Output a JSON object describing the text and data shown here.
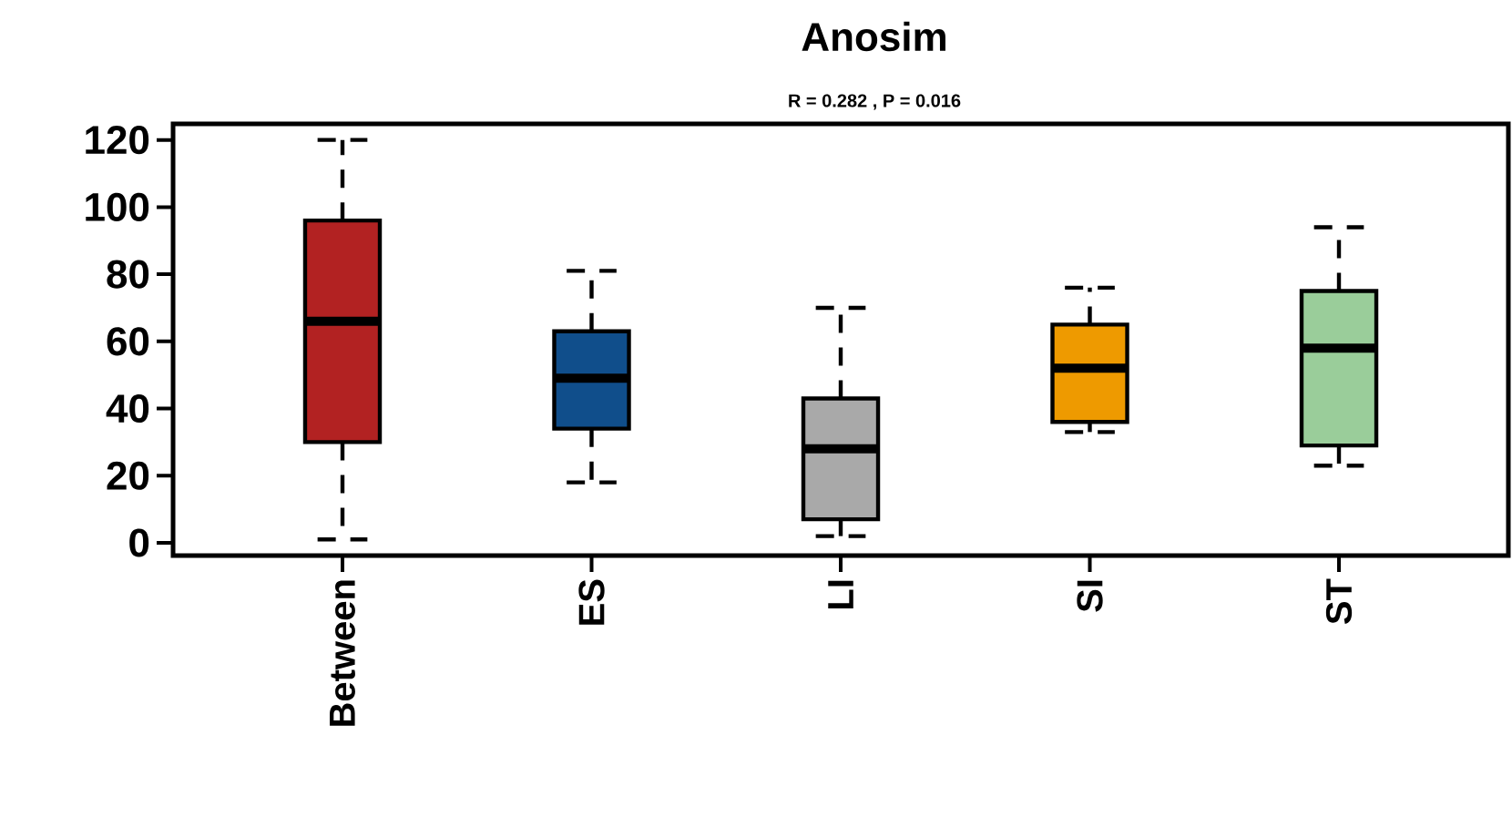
{
  "chart_data": {
    "type": "box",
    "title": "Anosim",
    "subtitle": "R =  0.282 ,  P =  0.016",
    "categories": [
      "Between",
      "ES",
      "LI",
      "SI",
      "ST"
    ],
    "colors": [
      "#b22222",
      "#104e8b",
      "#a9a9a9",
      "#ee9a00",
      "#9acd9a"
    ],
    "boxes": [
      {
        "low": 1,
        "q1": 30,
        "median": 66,
        "q3": 96,
        "high": 120
      },
      {
        "low": 18,
        "q1": 34,
        "median": 49,
        "q3": 63,
        "high": 81
      },
      {
        "low": 2,
        "q1": 7,
        "median": 28,
        "q3": 43,
        "high": 70
      },
      {
        "low": 33,
        "q1": 36,
        "median": 52,
        "q3": 65,
        "high": 76
      },
      {
        "low": 23,
        "q1": 29,
        "median": 58,
        "q3": 75,
        "high": 94
      }
    ],
    "ylim": [
      -3.8,
      124.8
    ],
    "yticks": [
      0,
      20,
      40,
      60,
      80,
      100,
      120
    ],
    "grid": false
  }
}
